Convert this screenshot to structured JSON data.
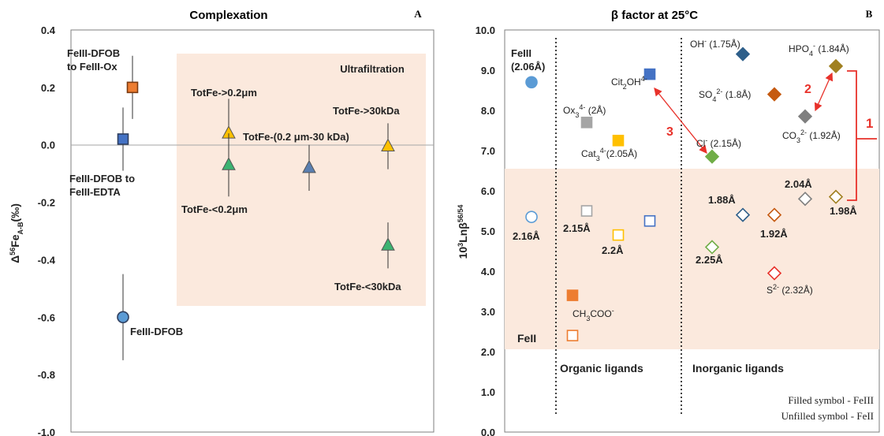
{
  "chart_data": [
    {
      "panel": "A",
      "type": "scatter",
      "title": "Complexation",
      "ylabel": "Δ56FeA-B(‰)",
      "ylabel_parts": {
        "delta": "Δ",
        "sup": "56",
        "main": "Fe",
        "sub": "A-B",
        "unit": "(‰)"
      },
      "ylim": [
        -1.0,
        0.4
      ],
      "yticks": [
        "0.4",
        "0.2",
        "0.0",
        "-0.2",
        "-0.4",
        "-0.6",
        "-0.8",
        "-1.0"
      ],
      "shaded_region_label": "Ultrafiltration",
      "points": [
        {
          "label": "FeIII-DFOB to FeIII-Ox",
          "x": 2,
          "y": 0.2,
          "err": 0.11,
          "marker": "square",
          "color": "#ED7D31"
        },
        {
          "label": "FeIII-DFOB to FeIII-EDTA",
          "x": 1,
          "y": 0.02,
          "err": 0.11,
          "marker": "square",
          "color": "#4472C4"
        },
        {
          "label": "FeIII-DFOB",
          "x": 1,
          "y": -0.6,
          "err": 0.15,
          "marker": "circle",
          "color": "#5B9BD5"
        },
        {
          "label": "TotFe->0.2μm",
          "x": 3,
          "y": 0.04,
          "err": 0.12,
          "marker": "triangle",
          "color": "#FFC000"
        },
        {
          "label": "TotFe-<0.2μm",
          "x": 3,
          "y": -0.07,
          "err": 0.11,
          "marker": "triangle",
          "color": "#3CB371"
        },
        {
          "label": "TotFe-(0.2 μm-30 kDa)",
          "x": 4,
          "y": -0.08,
          "err": 0.08,
          "marker": "triangle",
          "color": "#5A7FB0"
        },
        {
          "label": "TotFe->30kDa",
          "x": 5,
          "y": -0.005,
          "err": 0.08,
          "marker": "triangle",
          "color": "#FFC000"
        },
        {
          "label": "TotFe-<30kDa",
          "x": 5,
          "y": -0.35,
          "err": 0.08,
          "marker": "triangle",
          "color": "#3CB371"
        }
      ]
    },
    {
      "panel": "B",
      "type": "scatter",
      "title": "β factor at 25°C",
      "ylabel": "103Lnβ56/54",
      "ylabel_parts": {
        "base": "10",
        "sup": "3",
        "main": "Lnβ",
        "sup2": "56/54"
      },
      "ylim": [
        0.0,
        10.0
      ],
      "yticks": [
        "10.0",
        "9.0",
        "8.0",
        "7.0",
        "6.0",
        "5.0",
        "4.0",
        "3.0",
        "2.0",
        "1.0",
        "0.0"
      ],
      "section_labels": {
        "organic": "Organic ligands",
        "inorganic": "Inorganic ligands"
      },
      "region_labels": {
        "fe3": "FeIII (2.06Å)",
        "fe2": "FeII"
      },
      "legend": {
        "filled": "Filled symbol - FeIII",
        "unfilled": "Unfilled symbol - FeII"
      },
      "arrow_labels": [
        "1",
        "2",
        "3"
      ],
      "points": [
        {
          "ligand": "FeIII",
          "text": "FeIII (2.06Å)",
          "x": 1,
          "y": 8.7,
          "marker": "circle",
          "filled": true,
          "color": "#5B9BD5"
        },
        {
          "ligand": "FeII",
          "text": "2.16Å",
          "x": 1,
          "y": 5.35,
          "marker": "circle",
          "filled": false,
          "color": "#5B9BD5"
        },
        {
          "ligand": "Ox",
          "text": "Ox34- (2Å)",
          "x": 2,
          "y": 7.7,
          "marker": "square",
          "filled": true,
          "color": "#A5A5A5"
        },
        {
          "ligand": "Ox",
          "text": "2.15Å",
          "x": 2,
          "y": 5.5,
          "marker": "square",
          "filled": false,
          "color": "#A5A5A5"
        },
        {
          "ligand": "Cat",
          "text": "Cat34-(2.05Å)",
          "x": 3,
          "y": 7.25,
          "marker": "square",
          "filled": true,
          "color": "#FFC000"
        },
        {
          "ligand": "Cat",
          "text": "2.2Å",
          "x": 3,
          "y": 4.9,
          "marker": "square",
          "filled": false,
          "color": "#FFC000"
        },
        {
          "ligand": "Cit",
          "text": "Cit2OH4-",
          "x": 4,
          "y": 8.9,
          "marker": "square",
          "filled": true,
          "color": "#4472C4"
        },
        {
          "ligand": "Cit",
          "text": "",
          "x": 4,
          "y": 5.25,
          "marker": "square",
          "filled": false,
          "color": "#4472C4"
        },
        {
          "ligand": "CH3COO",
          "text": "CH3COO-",
          "x": 2,
          "y": 3.4,
          "marker": "square",
          "filled": true,
          "color": "#ED7D31"
        },
        {
          "ligand": "CH3COO",
          "text": "",
          "x": 2,
          "y": 2.4,
          "marker": "square",
          "filled": false,
          "color": "#ED7D31"
        },
        {
          "ligand": "OH",
          "text": "OH- (1.75Å)",
          "x": 6,
          "y": 9.4,
          "marker": "diamond",
          "filled": true,
          "color": "#2E5F8A"
        },
        {
          "ligand": "OH",
          "text": "1.88Å",
          "x": 6,
          "y": 5.4,
          "marker": "diamond",
          "filled": false,
          "color": "#2E5F8A"
        },
        {
          "ligand": "SO4",
          "text": "SO42- (1.8Å)",
          "x": 7,
          "y": 8.4,
          "marker": "diamond",
          "filled": true,
          "color": "#C55A11"
        },
        {
          "ligand": "SO4",
          "text": "1.92Å",
          "x": 7,
          "y": 5.4,
          "marker": "diamond",
          "filled": false,
          "color": "#C55A11"
        },
        {
          "ligand": "HPO4",
          "text": "HPO4- (1.84Å)",
          "x": 9,
          "y": 9.1,
          "marker": "diamond",
          "filled": true,
          "color": "#A08020"
        },
        {
          "ligand": "HPO4",
          "text": "1.98Å",
          "x": 9,
          "y": 5.85,
          "marker": "diamond",
          "filled": false,
          "color": "#A08020"
        },
        {
          "ligand": "CO3",
          "text": "CO32- (1.92Å)",
          "x": 8,
          "y": 7.85,
          "marker": "diamond",
          "filled": true,
          "color": "#7F7F7F"
        },
        {
          "ligand": "CO3",
          "text": "2.04Å",
          "x": 8,
          "y": 5.8,
          "marker": "diamond",
          "filled": false,
          "color": "#7F7F7F"
        },
        {
          "ligand": "Cl",
          "text": "Cl- (2.15Å)",
          "x": 5,
          "y": 6.85,
          "marker": "diamond",
          "filled": true,
          "color": "#70AD47"
        },
        {
          "ligand": "Cl",
          "text": "2.25Å",
          "x": 5,
          "y": 4.6,
          "marker": "diamond",
          "filled": false,
          "color": "#70AD47"
        },
        {
          "ligand": "S",
          "text": "S2- (2.32Å)",
          "x": 7,
          "y": 3.95,
          "marker": "diamond",
          "filled": false,
          "color": "#E8312A"
        }
      ]
    }
  ],
  "labels": {
    "a_ox": [
      "FeIII-DFOB",
      "to FeIII-Ox"
    ],
    "a_edta": [
      "FeIII-DFOB to",
      "FeIII-EDTA"
    ],
    "a_dfob": "FeIII-DFOB",
    "a_gt02": "TotFe->0.2μm",
    "a_lt02": "TotFe-<0.2μm",
    "a_mid": "TotFe-(0.2 μm-30 kDa)",
    "a_gt30": "TotFe->30kDa",
    "a_lt30": "TotFe-<30kDa",
    "b_fe3": [
      "FeIII",
      "(2.06Å)"
    ],
    "b_216": "2.16Å",
    "b_ox": {
      "main": "Ox",
      "sub": "3",
      "sup": "4-",
      "rest": " (2Å)"
    },
    "b_215": "2.15Å",
    "b_cat": {
      "main": "Cat",
      "sub": "3",
      "sup": "4-",
      "rest": "(2.05Å)"
    },
    "b_22": "2.2Å",
    "b_cit": {
      "main": "Cit",
      "sub": "2",
      "mid": "OH",
      "sup": "4-"
    },
    "b_ch3": {
      "a": "CH",
      "sub": "3",
      "b": "COO",
      "sup": "-"
    },
    "b_oh": {
      "main": "OH",
      "sup": "-",
      "rest": " (1.75Å)"
    },
    "b_so4": {
      "main": "SO",
      "sub": "4",
      "sup": "2-",
      "rest": " (1.8Å)"
    },
    "b_hpo4": {
      "main": "HPO",
      "sub": "4",
      "sup": "-",
      "rest": " (1.84Å)"
    },
    "b_co3": {
      "main": "CO",
      "sub": "3",
      "sup": "2-",
      "rest": " (1.92Å)"
    },
    "b_cl": {
      "main": "Cl",
      "sup": "-",
      "rest": " (2.15Å)"
    },
    "b_188": "1.88Å",
    "b_192": "1.92Å",
    "b_204": "2.04Å",
    "b_198": "1.98Å",
    "b_225": "2.25Å",
    "b_s": {
      "main": "S",
      "sup": "2-",
      "rest": " (2.32Å)"
    }
  }
}
